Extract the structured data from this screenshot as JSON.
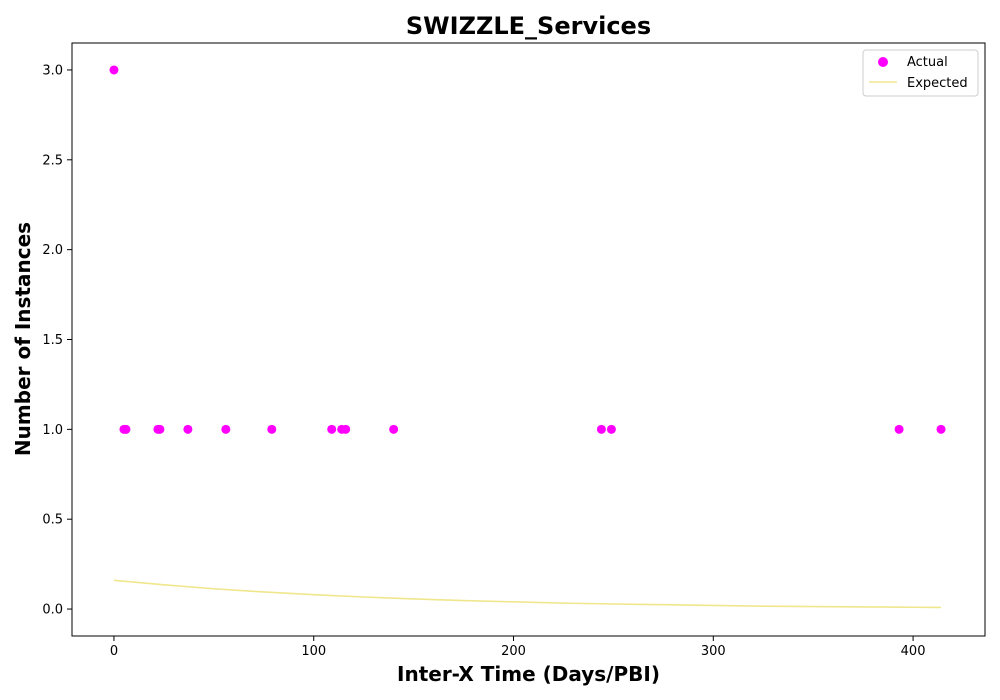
{
  "chart_data": {
    "type": "scatter",
    "title": "SWIZZLE_Services",
    "xlabel": "Inter-X Time (Days/PBI)",
    "ylabel": "Number of Instances",
    "xlim": [
      -21,
      436
    ],
    "ylim": [
      -0.15,
      3.15
    ],
    "xticks": [
      0,
      100,
      200,
      300,
      400
    ],
    "xtick_labels": [
      "0",
      "100",
      "200",
      "300",
      "400"
    ],
    "yticks": [
      0.0,
      0.5,
      1.0,
      1.5,
      2.0,
      2.5,
      3.0
    ],
    "ytick_labels": [
      "0.0",
      "0.5",
      "1.0",
      "1.5",
      "2.0",
      "2.5",
      "3.0"
    ],
    "grid": false,
    "legend_position": "top-right",
    "series": [
      {
        "name": "Actual",
        "kind": "scatter",
        "color": "#ff00ff",
        "x": [
          0,
          5,
          6,
          22,
          23,
          37,
          56,
          79,
          109,
          114,
          116,
          140,
          244,
          249,
          393,
          414
        ],
        "y": [
          3,
          1,
          1,
          1,
          1,
          1,
          1,
          1,
          1,
          1,
          1,
          1,
          1,
          1,
          1,
          1
        ]
      },
      {
        "name": "Expected",
        "kind": "line",
        "color": "#f0e68c",
        "x": [
          0,
          25,
          50,
          75,
          100,
          125,
          150,
          175,
          200,
          225,
          250,
          275,
          300,
          325,
          350,
          375,
          400,
          414
        ],
        "y": [
          0.16,
          0.135,
          0.113,
          0.095,
          0.08,
          0.067,
          0.056,
          0.047,
          0.04,
          0.033,
          0.028,
          0.024,
          0.02,
          0.016,
          0.014,
          0.012,
          0.01,
          0.009
        ]
      }
    ]
  }
}
